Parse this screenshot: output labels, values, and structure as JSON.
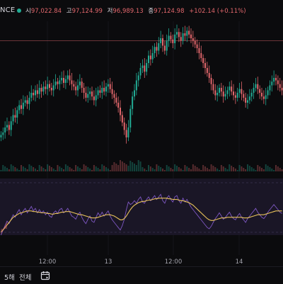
{
  "header": {
    "ticker": "NCE",
    "ohlc": [
      {
        "label": "시",
        "value": "97,022.84"
      },
      {
        "label": "고",
        "value": "97,124.99"
      },
      {
        "label": "저",
        "value": "96,989.13"
      },
      {
        "label": "종",
        "value": "97,124.98"
      }
    ],
    "change": "+102.14 (+0.11%)"
  },
  "colors": {
    "up": "#22ab94",
    "down": "#e2676c",
    "ma_line": "#e8c25a",
    "rsi_line": "#7e57c2",
    "price_line": "#e2676c"
  },
  "xaxis": {
    "ticks": [
      "12:00",
      "13",
      "12:00",
      "14"
    ]
  },
  "bottombar": {
    "timeframe_5d": "5해",
    "timeframe_all": "전체",
    "calendar_icon": "calendar-icon"
  },
  "chart_data": {
    "type": "candlestick",
    "close_series": [
      14,
      16,
      20,
      22,
      18,
      25,
      30,
      28,
      34,
      38,
      35,
      40,
      42,
      39,
      44,
      48,
      46,
      50,
      47,
      52,
      49,
      53,
      51,
      55,
      52,
      50,
      54,
      57,
      55,
      58,
      60,
      56,
      59,
      62,
      58,
      55,
      53,
      50,
      54,
      57,
      52,
      48,
      44,
      47,
      49,
      45,
      42,
      46,
      50,
      48,
      52,
      49,
      53,
      55,
      51,
      47,
      44,
      40,
      36,
      30,
      24,
      18,
      12,
      20,
      35,
      45,
      50,
      58,
      62,
      68,
      70,
      65,
      72,
      78,
      75,
      80,
      85,
      82,
      88,
      92,
      86,
      82,
      90,
      94,
      91,
      88,
      95,
      97,
      93,
      90,
      96,
      94,
      98,
      95,
      92,
      90,
      87,
      84,
      80,
      76,
      72,
      68,
      64,
      60,
      55,
      50,
      46,
      48,
      52,
      49,
      45,
      47,
      50,
      53,
      49,
      46,
      44,
      48,
      51,
      47,
      44,
      40,
      42,
      45,
      48,
      52,
      55,
      51,
      48,
      45,
      43,
      46,
      50,
      54,
      57,
      60,
      58,
      55,
      52,
      50
    ],
    "rsi_series": [
      20,
      28,
      35,
      42,
      38,
      45,
      52,
      48,
      55,
      60,
      52,
      58,
      62,
      55,
      60,
      65,
      58,
      62,
      55,
      60,
      55,
      58,
      52,
      56,
      50,
      48,
      55,
      58,
      54,
      60,
      62,
      55,
      58,
      62,
      56,
      50,
      48,
      45,
      52,
      56,
      48,
      42,
      38,
      45,
      50,
      42,
      40,
      48,
      55,
      50,
      56,
      50,
      54,
      58,
      50,
      44,
      40,
      36,
      32,
      28,
      35,
      45,
      60,
      72,
      68,
      70,
      74,
      70,
      76,
      80,
      72,
      70,
      76,
      80,
      74,
      78,
      82,
      76,
      80,
      84,
      74,
      70,
      78,
      82,
      76,
      72,
      80,
      82,
      74,
      70,
      78,
      72,
      76,
      70,
      64,
      60,
      56,
      52,
      48,
      44,
      40,
      36,
      32,
      30,
      34,
      40,
      46,
      50,
      55,
      50,
      45,
      48,
      52,
      56,
      50,
      46,
      44,
      50,
      54,
      48,
      44,
      40,
      46,
      50,
      54,
      58,
      62,
      56,
      52,
      48,
      46,
      50,
      56,
      60,
      64,
      68,
      64,
      60,
      56,
      54
    ],
    "ma_series": [
      25,
      28,
      32,
      36,
      40,
      44,
      48,
      50,
      52,
      54,
      55,
      56,
      57,
      58,
      58,
      58,
      57,
      57,
      56,
      56,
      55,
      55,
      55,
      54,
      54,
      53,
      53,
      54,
      54,
      55,
      56,
      56,
      57,
      57,
      57,
      56,
      55,
      54,
      53,
      52,
      52,
      51,
      50,
      49,
      48,
      47,
      47,
      47,
      48,
      49,
      50,
      51,
      52,
      52,
      52,
      51,
      50,
      48,
      46,
      44,
      44,
      46,
      50,
      55,
      60,
      64,
      67,
      69,
      71,
      72,
      73,
      73,
      74,
      75,
      75,
      76,
      77,
      77,
      78,
      78,
      78,
      78,
      78,
      77,
      77,
      76,
      76,
      76,
      75,
      74,
      74,
      73,
      72,
      71,
      69,
      67,
      64,
      61,
      58,
      55,
      52,
      49,
      46,
      44,
      43,
      43,
      44,
      45,
      46,
      47,
      47,
      47,
      48,
      48,
      48,
      48,
      48,
      48,
      48,
      48,
      47,
      47,
      47,
      48,
      49,
      50,
      51,
      52,
      52,
      52,
      52,
      53,
      54,
      55,
      56,
      57,
      58,
      58,
      58,
      58
    ],
    "price_line_level": 90,
    "x_tick_labels": [
      "12:00",
      "13",
      "12:00",
      "14"
    ]
  }
}
